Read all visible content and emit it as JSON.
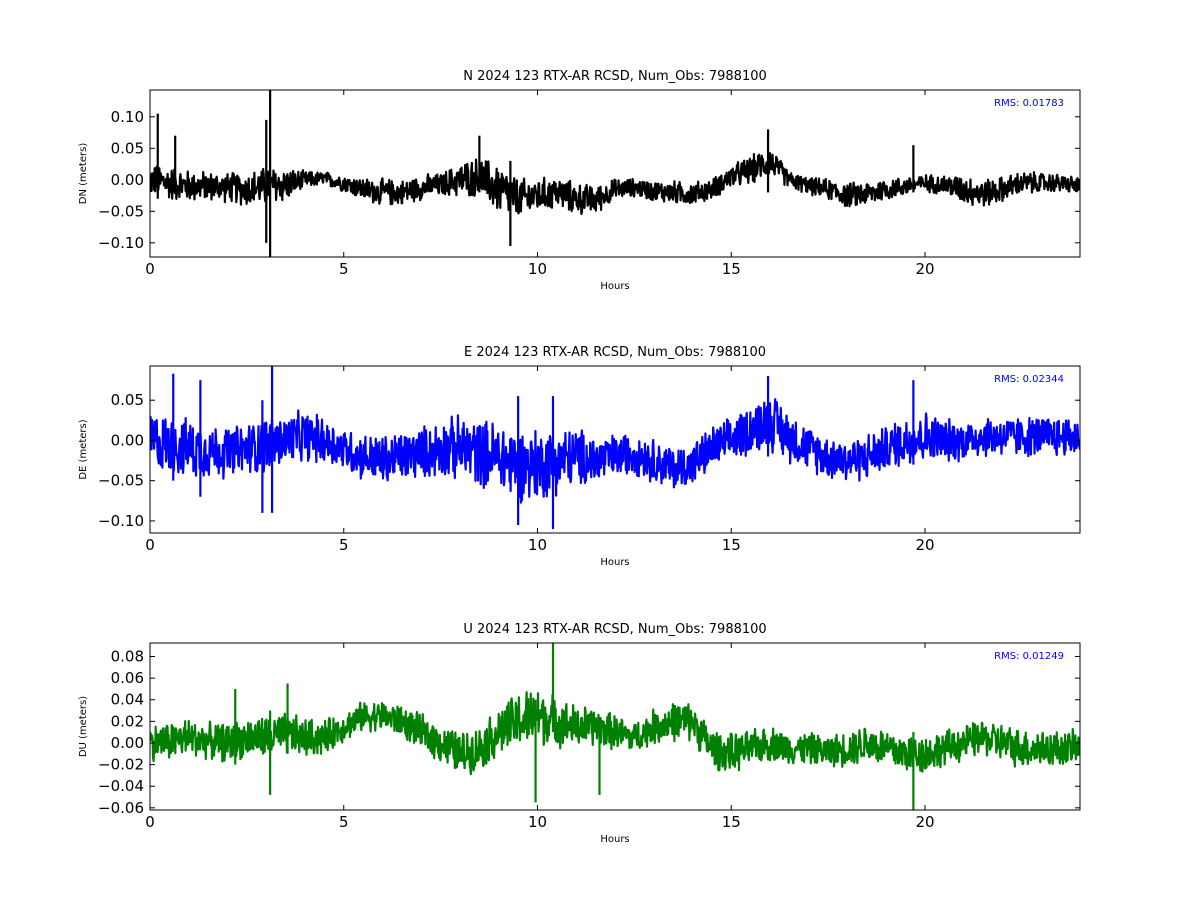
{
  "chart_data": [
    {
      "type": "line",
      "title": "N 2024 123 RTX-AR  RCSD, Num_Obs: 7988100",
      "xlabel": "Hours",
      "ylabel": "DN (meters)",
      "xlim": [
        0,
        24
      ],
      "ylim": [
        -0.1225,
        0.1425
      ],
      "xticks": [
        "0",
        "5",
        "10",
        "15",
        "20"
      ],
      "yticks": [
        "0.10",
        "0.05",
        "0.00",
        "−0.05",
        "−0.10"
      ],
      "ytick_values": [
        0.1,
        0.05,
        0.0,
        -0.05,
        -0.1
      ],
      "rms_text": "RMS:  0.01783",
      "rms_color": "#0000ff",
      "series": [
        {
          "color": "#000000",
          "x": [
            0,
            0.5,
            1,
            1.5,
            2,
            2.5,
            3,
            3.5,
            4,
            4.5,
            5,
            5.5,
            6,
            6.5,
            7,
            7.5,
            8,
            8.5,
            9,
            9.5,
            10,
            10.5,
            11,
            11.5,
            12,
            12.5,
            13,
            13.5,
            14,
            14.5,
            15,
            15.5,
            16,
            16.5,
            17,
            17.5,
            18,
            18.5,
            19,
            19.5,
            20,
            20.5,
            21,
            21.5,
            22,
            22.5,
            23,
            23.5,
            24
          ],
          "y": [
            0,
            -0.005,
            -0.01,
            -0.01,
            -0.012,
            -0.015,
            -0.01,
            -0.008,
            0,
            0.002,
            -0.005,
            -0.015,
            -0.02,
            -0.02,
            -0.012,
            -0.008,
            0,
            0.005,
            -0.015,
            -0.03,
            -0.025,
            -0.02,
            -0.03,
            -0.032,
            -0.015,
            -0.012,
            -0.018,
            -0.02,
            -0.022,
            -0.015,
            0.005,
            0.015,
            0.03,
            0,
            -0.01,
            -0.015,
            -0.025,
            -0.022,
            -0.015,
            -0.01,
            -0.005,
            -0.008,
            -0.015,
            -0.022,
            -0.015,
            -0.005,
            -0.005,
            -0.005,
            -0.01
          ],
          "band": [
            0.028,
            0.03,
            0.028,
            0.026,
            0.026,
            0.03,
            0.035,
            0.03,
            0.015,
            0.012,
            0.015,
            0.02,
            0.024,
            0.022,
            0.022,
            0.02,
            0.03,
            0.035,
            0.045,
            0.035,
            0.03,
            0.028,
            0.028,
            0.025,
            0.018,
            0.016,
            0.018,
            0.02,
            0.02,
            0.018,
            0.02,
            0.025,
            0.025,
            0.015,
            0.015,
            0.018,
            0.022,
            0.022,
            0.02,
            0.016,
            0.015,
            0.018,
            0.025,
            0.025,
            0.022,
            0.02,
            0.018,
            0.016,
            0.015
          ]
        }
      ],
      "spikes": [
        {
          "x": 3.1,
          "min": -0.1225,
          "max": 0.1425
        },
        {
          "x": 0.2,
          "min": -0.03,
          "max": 0.105
        },
        {
          "x": 0.65,
          "min": -0.02,
          "max": 0.07
        },
        {
          "x": 3.0,
          "min": -0.1,
          "max": 0.095
        },
        {
          "x": 8.5,
          "min": -0.02,
          "max": 0.07
        },
        {
          "x": 9.3,
          "min": -0.105,
          "max": 0.03
        },
        {
          "x": 15.95,
          "min": -0.02,
          "max": 0.08
        },
        {
          "x": 19.7,
          "min": -0.02,
          "max": 0.055
        }
      ]
    },
    {
      "type": "line",
      "title": "E 2024 123 RTX-AR  RCSD, Num_Obs: 7988100",
      "xlabel": "Hours",
      "ylabel": "DE (meters)",
      "xlim": [
        0,
        24
      ],
      "ylim": [
        -0.115,
        0.0925
      ],
      "xticks": [
        "0",
        "5",
        "10",
        "15",
        "20"
      ],
      "yticks": [
        "0.05",
        "0.00",
        "−0.05",
        "−0.10"
      ],
      "ytick_values": [
        0.05,
        0.0,
        -0.05,
        -0.1
      ],
      "rms_text": "RMS:  0.02344",
      "rms_color": "#0000ff",
      "series": [
        {
          "color": "#0000ff",
          "x": [
            0,
            0.5,
            1,
            1.5,
            2,
            2.5,
            3,
            3.5,
            4,
            4.5,
            5,
            5.5,
            6,
            6.5,
            7,
            7.5,
            8,
            8.5,
            9,
            9.5,
            10,
            10.5,
            11,
            11.5,
            12,
            12.5,
            13,
            13.5,
            14,
            14.5,
            15,
            15.5,
            16,
            16.5,
            17,
            17.5,
            18,
            18.5,
            19,
            19.5,
            20,
            20.5,
            21,
            21.5,
            22,
            22.5,
            23,
            23.5,
            24
          ],
          "y": [
            0,
            -0.005,
            -0.01,
            -0.012,
            -0.015,
            -0.01,
            -0.005,
            0,
            0.005,
            0,
            -0.01,
            -0.02,
            -0.025,
            -0.02,
            -0.015,
            -0.01,
            -0.01,
            -0.015,
            -0.02,
            -0.03,
            -0.03,
            -0.025,
            -0.02,
            -0.025,
            -0.02,
            -0.015,
            -0.025,
            -0.035,
            -0.03,
            -0.01,
            0,
            0.015,
            0.025,
            0.005,
            -0.01,
            -0.02,
            -0.025,
            -0.02,
            -0.01,
            0,
            0.005,
            0,
            0,
            0.005,
            0.005,
            0.005,
            0.005,
            0.005,
            0.005
          ],
          "band": [
            0.04,
            0.04,
            0.04,
            0.038,
            0.035,
            0.035,
            0.04,
            0.035,
            0.035,
            0.032,
            0.03,
            0.032,
            0.035,
            0.035,
            0.035,
            0.04,
            0.045,
            0.045,
            0.05,
            0.05,
            0.05,
            0.045,
            0.04,
            0.035,
            0.03,
            0.03,
            0.03,
            0.03,
            0.03,
            0.03,
            0.03,
            0.035,
            0.04,
            0.035,
            0.03,
            0.03,
            0.03,
            0.032,
            0.03,
            0.035,
            0.035,
            0.03,
            0.028,
            0.028,
            0.028,
            0.028,
            0.028,
            0.028,
            0.028
          ]
        }
      ],
      "spikes": [
        {
          "x": 3.15,
          "min": -0.09,
          "max": 0.0925
        },
        {
          "x": 0.6,
          "min": -0.05,
          "max": 0.083
        },
        {
          "x": 1.3,
          "min": -0.07,
          "max": 0.075
        },
        {
          "x": 2.9,
          "min": -0.09,
          "max": 0.05
        },
        {
          "x": 9.5,
          "min": -0.105,
          "max": 0.055
        },
        {
          "x": 10.4,
          "min": -0.11,
          "max": 0.055
        },
        {
          "x": 15.95,
          "min": -0.02,
          "max": 0.08
        },
        {
          "x": 19.7,
          "min": -0.03,
          "max": 0.075
        }
      ]
    },
    {
      "type": "line",
      "title": "U 2024 123 RTX-AR  RCSD, Num_Obs: 7988100",
      "xlabel": "Hours",
      "ylabel": "DU (meters)",
      "xlim": [
        0,
        24
      ],
      "ylim": [
        -0.062,
        0.0925
      ],
      "xticks": [
        "0",
        "5",
        "10",
        "15",
        "20"
      ],
      "yticks": [
        "0.08",
        "0.06",
        "0.04",
        "0.02",
        "0.00",
        "−0.02",
        "−0.04",
        "−0.06"
      ],
      "ytick_values": [
        0.08,
        0.06,
        0.04,
        0.02,
        0.0,
        -0.02,
        -0.04,
        -0.06
      ],
      "rms_text": "RMS:  0.01249",
      "rms_color": "#0000ff",
      "series": [
        {
          "color": "#008000",
          "x": [
            0,
            0.5,
            1,
            1.5,
            2,
            2.5,
            3,
            3.5,
            4,
            4.5,
            5,
            5.5,
            6,
            6.5,
            7,
            7.5,
            8,
            8.5,
            9,
            9.5,
            10,
            10.5,
            11,
            11.5,
            12,
            12.5,
            13,
            13.5,
            14,
            14.5,
            15,
            15.5,
            16,
            16.5,
            17,
            17.5,
            18,
            18.5,
            19,
            19.5,
            20,
            20.5,
            21,
            21.5,
            22,
            22.5,
            23,
            23.5,
            24
          ],
          "y": [
            0,
            0.002,
            0.005,
            0.002,
            0,
            0.005,
            0.005,
            0.008,
            0.005,
            0.005,
            0.015,
            0.025,
            0.025,
            0.02,
            0.01,
            0,
            -0.01,
            -0.005,
            0.01,
            0.02,
            0.025,
            0.02,
            0.015,
            0.015,
            0.01,
            0.005,
            0.015,
            0.02,
            0.02,
            -0.005,
            -0.01,
            -0.005,
            0,
            -0.005,
            -0.005,
            -0.008,
            -0.005,
            0,
            -0.005,
            -0.01,
            -0.01,
            -0.005,
            0,
            0.005,
            0,
            -0.005,
            -0.005,
            -0.005,
            -0.005
          ],
          "band": [
            0.018,
            0.02,
            0.02,
            0.018,
            0.02,
            0.02,
            0.022,
            0.022,
            0.02,
            0.018,
            0.015,
            0.015,
            0.016,
            0.016,
            0.018,
            0.02,
            0.022,
            0.022,
            0.025,
            0.03,
            0.03,
            0.025,
            0.022,
            0.02,
            0.018,
            0.016,
            0.018,
            0.02,
            0.02,
            0.02,
            0.02,
            0.018,
            0.018,
            0.016,
            0.016,
            0.016,
            0.018,
            0.02,
            0.02,
            0.02,
            0.02,
            0.018,
            0.018,
            0.018,
            0.02,
            0.02,
            0.02,
            0.018,
            0.018
          ]
        }
      ],
      "spikes": [
        {
          "x": 10.4,
          "min": 0.01,
          "max": 0.0925
        },
        {
          "x": 3.1,
          "min": -0.048,
          "max": 0.03
        },
        {
          "x": 3.55,
          "min": -0.01,
          "max": 0.055
        },
        {
          "x": 2.2,
          "min": -0.02,
          "max": 0.05
        },
        {
          "x": 9.95,
          "min": -0.055,
          "max": 0.04
        },
        {
          "x": 11.6,
          "min": -0.048,
          "max": 0.02
        },
        {
          "x": 19.7,
          "min": -0.062,
          "max": 0.01
        }
      ]
    }
  ]
}
